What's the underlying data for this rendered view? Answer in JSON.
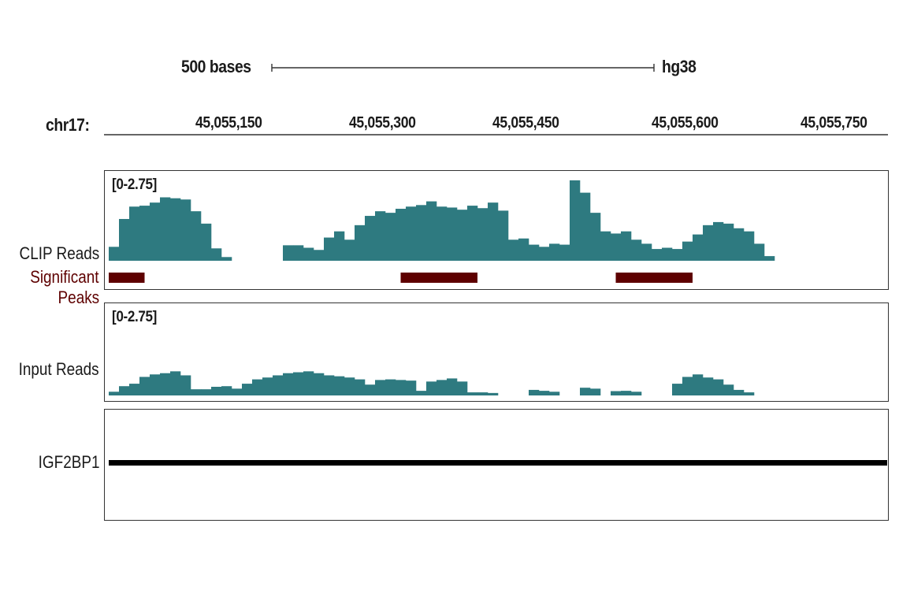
{
  "scale_bar": {
    "label": "500 bases",
    "assembly": "hg38"
  },
  "chromosome": "chr17:",
  "ticks": [
    "45,055,150",
    "45,055,300",
    "45,055,450",
    "45,055,600",
    "45,055,750"
  ],
  "tracks": {
    "clip": {
      "label": "CLIP Reads",
      "range": "[0-2.75]"
    },
    "peaks": {
      "label_line1": "Significant",
      "label_line2": "Peaks",
      "color": "#5e0000"
    },
    "input": {
      "label": "Input Reads",
      "range": "[0-2.75]"
    },
    "gene": {
      "label": "IGF2BP1",
      "color": "#000000"
    }
  },
  "colors": {
    "coverage": "#2e7a80",
    "peak": "#5e0000"
  },
  "chart_data": {
    "type": "area",
    "x_range": [
      45055070,
      45055830
    ],
    "y_range": [
      0,
      2.75
    ],
    "series": [
      {
        "name": "CLIP Reads",
        "x": [
          45055075,
          45055085,
          45055095,
          45055105,
          45055115,
          45055125,
          45055135,
          45055145,
          45055155,
          45055165,
          45055175,
          45055185,
          45055195,
          45055205,
          45055215,
          45055225,
          45055235,
          45055245,
          45055255,
          45055265,
          45055275,
          45055285,
          45055295,
          45055305,
          45055315,
          45055325,
          45055335,
          45055345,
          45055355,
          45055365,
          45055375,
          45055385,
          45055395,
          45055405,
          45055415,
          45055425,
          45055435,
          45055445,
          45055455,
          45055465,
          45055475,
          45055485,
          45055495,
          45055505,
          45055515,
          45055525,
          45055535,
          45055545,
          45055555,
          45055565,
          45055575,
          45055585,
          45055595,
          45055605,
          45055615,
          45055625,
          45055635,
          45055645,
          45055655,
          45055665,
          45055675,
          45055685,
          45055695,
          45055705,
          45055715,
          45055725,
          45055735,
          45055745,
          45055755,
          45055765,
          45055775,
          45055785,
          45055795,
          45055805,
          45055815
        ],
        "values": [
          0.45,
          1.35,
          1.75,
          1.78,
          1.88,
          2.05,
          2.02,
          1.98,
          1.6,
          1.2,
          0.4,
          0.12,
          0,
          0,
          0,
          0,
          0,
          0.5,
          0.5,
          0.42,
          0.35,
          0.75,
          0.95,
          0.68,
          1.15,
          1.45,
          1.6,
          1.55,
          1.68,
          1.75,
          1.8,
          1.92,
          1.75,
          1.72,
          1.65,
          1.78,
          1.7,
          1.88,
          1.62,
          0.68,
          0.72,
          0.52,
          0.45,
          0.55,
          0.52,
          2.6,
          2.2,
          1.55,
          0.95,
          0.88,
          0.95,
          0.68,
          0.55,
          0.38,
          0.42,
          0.38,
          0.62,
          0.85,
          1.15,
          1.25,
          1.2,
          1.05,
          0.95,
          0.55,
          0.15,
          0,
          0,
          0,
          0,
          0,
          0,
          0,
          0,
          0,
          0
        ]
      },
      {
        "name": "Input Reads",
        "x": [
          45055075,
          45055085,
          45055095,
          45055105,
          45055115,
          45055125,
          45055135,
          45055145,
          45055155,
          45055165,
          45055175,
          45055185,
          45055195,
          45055205,
          45055215,
          45055225,
          45055235,
          45055245,
          45055255,
          45055265,
          45055275,
          45055285,
          45055295,
          45055305,
          45055315,
          45055325,
          45055335,
          45055345,
          45055355,
          45055365,
          45055375,
          45055385,
          45055395,
          45055405,
          45055415,
          45055425,
          45055435,
          45055445,
          45055455,
          45055465,
          45055475,
          45055485,
          45055495,
          45055505,
          45055515,
          45055525,
          45055535,
          45055545,
          45055555,
          45055565,
          45055575,
          45055585,
          45055595,
          45055605,
          45055615,
          45055625,
          45055635,
          45055645,
          45055655,
          45055665,
          45055675,
          45055685,
          45055695,
          45055705,
          45055715,
          45055725,
          45055735,
          45055745,
          45055755,
          45055765,
          45055775,
          45055785,
          45055795,
          45055805,
          45055815
        ],
        "values": [
          0.12,
          0.3,
          0.38,
          0.6,
          0.68,
          0.72,
          0.78,
          0.65,
          0.2,
          0.2,
          0.28,
          0.3,
          0.22,
          0.38,
          0.52,
          0.58,
          0.65,
          0.72,
          0.75,
          0.78,
          0.72,
          0.65,
          0.62,
          0.58,
          0.52,
          0.35,
          0.5,
          0.52,
          0.5,
          0.48,
          0.15,
          0.45,
          0.5,
          0.55,
          0.45,
          0.1,
          0.1,
          0.08,
          0,
          0,
          0,
          0.18,
          0.15,
          0.12,
          0,
          0,
          0.25,
          0.22,
          0,
          0.14,
          0.15,
          0.12,
          0,
          0,
          0,
          0.38,
          0.6,
          0.68,
          0.58,
          0.52,
          0.35,
          0.18,
          0.1,
          0,
          0,
          0,
          0,
          0,
          0,
          0,
          0,
          0,
          0,
          0,
          0
        ]
      }
    ],
    "peaks": [
      [
        45055070,
        45055105
      ],
      [
        45055355,
        45055430
      ],
      [
        45055565,
        45055640
      ]
    ],
    "gene_span": [
      45055070,
      45055830
    ]
  }
}
